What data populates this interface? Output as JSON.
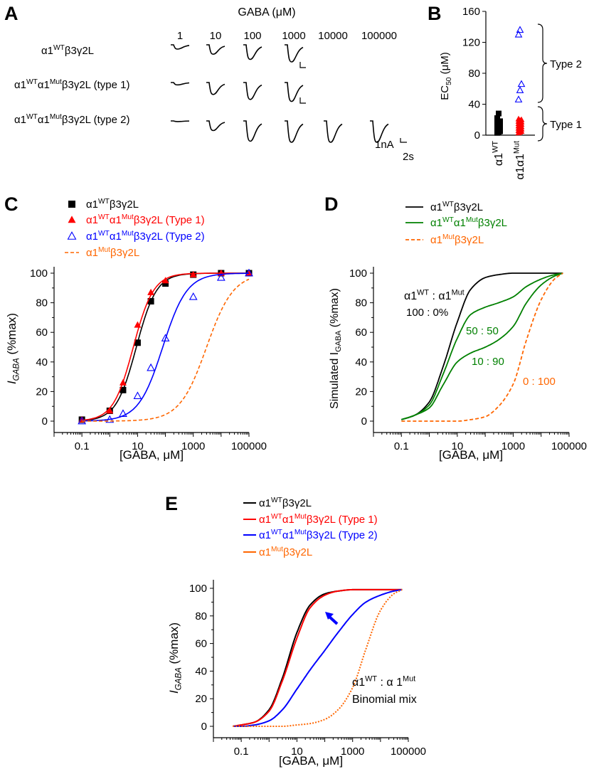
{
  "panels": {
    "A": {
      "letter": "A",
      "concentration_header": "GABA (μM)",
      "concentrations": [
        "1",
        "10",
        "100",
        "1000",
        "10000",
        "100000"
      ],
      "rows": [
        {
          "parts": [
            {
              "t": "α1",
              "s": "n"
            },
            {
              "t": "WT",
              "s": "sup"
            },
            {
              "t": "β3γ2L",
              "s": "n"
            }
          ]
        },
        {
          "parts": [
            {
              "t": "α1",
              "s": "n"
            },
            {
              "t": "WT",
              "s": "sup"
            },
            {
              "t": "α1",
              "s": "n"
            },
            {
              "t": "Mut",
              "s": "sup"
            },
            {
              "t": "β3γ2L (type 1)",
              "s": "n"
            }
          ]
        },
        {
          "parts": [
            {
              "t": "α1",
              "s": "n"
            },
            {
              "t": "WT",
              "s": "sup"
            },
            {
              "t": "α1",
              "s": "n"
            },
            {
              "t": "Mut",
              "s": "sup"
            },
            {
              "t": "β3γ2L (type 2)",
              "s": "n"
            }
          ]
        }
      ],
      "trace_depths": [
        [
          0.25,
          0.55,
          0.85,
          1.0
        ],
        [
          0.12,
          0.6,
          0.85,
          0.95
        ],
        [
          0.03,
          0.45,
          0.95,
          1.0,
          1.0,
          1.0
        ]
      ],
      "scale_current": "1nA",
      "scale_time": "2s"
    },
    "B": {
      "letter": "B",
      "ylabel": {
        "parts": [
          {
            "t": "EC",
            "s": "n"
          },
          {
            "t": "50",
            "s": "sub"
          },
          {
            "t": " (μM)",
            "s": "n"
          }
        ]
      },
      "yticks": [
        "0",
        "40",
        "80",
        "120",
        "160"
      ],
      "categories": [
        {
          "parts": [
            {
              "t": "α1",
              "s": "n"
            },
            {
              "t": "WT",
              "s": "sup"
            }
          ]
        },
        {
          "parts": [
            {
              "t": "α1α1",
              "s": "n"
            },
            {
              "t": "Mut",
              "s": "sup"
            }
          ]
        }
      ],
      "brace_labels": [
        "Type 2",
        "Type 1"
      ]
    },
    "C": {
      "letter": "C",
      "legend": [
        {
          "parts": [
            {
              "t": "α1",
              "s": "n"
            },
            {
              "t": "WT",
              "s": "sup"
            },
            {
              "t": "β3γ2L",
              "s": "n"
            }
          ]
        },
        {
          "parts": [
            {
              "t": "α1",
              "s": "n"
            },
            {
              "t": "WT",
              "s": "sup"
            },
            {
              "t": "α1",
              "s": "n"
            },
            {
              "t": "Mut",
              "s": "sup"
            },
            {
              "t": "β3γ2L (Type 1)",
              "s": "n"
            }
          ]
        },
        {
          "parts": [
            {
              "t": "α1",
              "s": "n"
            },
            {
              "t": "WT",
              "s": "sup"
            },
            {
              "t": "α1",
              "s": "n"
            },
            {
              "t": "Mut",
              "s": "sup"
            },
            {
              "t": "β3γ2L (Type 2)",
              "s": "n"
            }
          ]
        },
        {
          "parts": [
            {
              "t": "α1",
              "s": "n"
            },
            {
              "t": "Mut",
              "s": "sup"
            },
            {
              "t": "β3γ2L",
              "s": "n"
            }
          ]
        }
      ],
      "ylabel": {
        "parts": [
          {
            "t": "I",
            "s": "i"
          },
          {
            "t": "GABA",
            "s": "isub"
          },
          {
            "t": " (%max)",
            "s": "n"
          }
        ]
      },
      "xlabel": "[GABA, μM]",
      "xticks": [
        "0.1",
        "10",
        "1000",
        "100000"
      ],
      "yticks": [
        "0",
        "20",
        "40",
        "60",
        "80",
        "100"
      ]
    },
    "D": {
      "letter": "D",
      "legend": [
        {
          "parts": [
            {
              "t": "α1",
              "s": "n"
            },
            {
              "t": "WT",
              "s": "sup"
            },
            {
              "t": "β3γ2L",
              "s": "n"
            }
          ]
        },
        {
          "parts": [
            {
              "t": "α1",
              "s": "n"
            },
            {
              "t": "WT",
              "s": "sup"
            },
            {
              "t": "α1",
              "s": "n"
            },
            {
              "t": "Mut",
              "s": "sup"
            },
            {
              "t": "β3γ2L",
              "s": "n"
            }
          ]
        },
        {
          "parts": [
            {
              "t": "α1",
              "s": "n"
            },
            {
              "t": "Mut",
              "s": "sup"
            },
            {
              "t": "β3γ2L",
              "s": "n"
            }
          ]
        }
      ],
      "ylabel": {
        "parts": [
          {
            "t": "Simulated I",
            "s": "n"
          },
          {
            "t": "GABA",
            "s": "sub"
          },
          {
            "t": " (%max)",
            "s": "n"
          }
        ]
      },
      "xlabel": "[GABA, μM]",
      "xticks": [
        "0.1",
        "10",
        "1000",
        "100000"
      ],
      "yticks": [
        "0",
        "20",
        "40",
        "60",
        "80",
        "100"
      ],
      "ratio_header": {
        "parts": [
          {
            "t": "α1",
            "s": "n"
          },
          {
            "t": "WT",
            "s": "sup"
          },
          {
            "t": " : α1",
            "s": "n"
          },
          {
            "t": "Mut",
            "s": "sup"
          }
        ]
      },
      "ratio_labels": [
        "100 : 0%",
        "50 : 50",
        "10 : 90",
        "0 : 100"
      ]
    },
    "E": {
      "letter": "E",
      "legend": [
        {
          "parts": [
            {
              "t": "α1",
              "s": "n"
            },
            {
              "t": "WT",
              "s": "sup"
            },
            {
              "t": "β3γ2L",
              "s": "n"
            }
          ]
        },
        {
          "parts": [
            {
              "t": "α1",
              "s": "n"
            },
            {
              "t": "WT",
              "s": "sup"
            },
            {
              "t": "α1",
              "s": "n"
            },
            {
              "t": "Mut",
              "s": "sup"
            },
            {
              "t": "β3γ2L (Type 1)",
              "s": "n"
            }
          ]
        },
        {
          "parts": [
            {
              "t": "α1",
              "s": "n"
            },
            {
              "t": "WT",
              "s": "sup"
            },
            {
              "t": "α1",
              "s": "n"
            },
            {
              "t": "Mut",
              "s": "sup"
            },
            {
              "t": "β3γ2L (Type 2)",
              "s": "n"
            }
          ]
        },
        {
          "parts": [
            {
              "t": "α1",
              "s": "n"
            },
            {
              "t": "Mut",
              "s": "sup"
            },
            {
              "t": "β3γ2L",
              "s": "n"
            }
          ]
        }
      ],
      "ylabel": {
        "parts": [
          {
            "t": "I",
            "s": "i"
          },
          {
            "t": "GABA",
            "s": "isub"
          },
          {
            "t": " (%max)",
            "s": "n"
          }
        ]
      },
      "xlabel": "[GABA, μM]",
      "xticks": [
        "0.1",
        "10",
        "1000",
        "100000"
      ],
      "yticks": [
        "0",
        "20",
        "40",
        "60",
        "80",
        "100"
      ],
      "annotation_line1": {
        "parts": [
          {
            "t": "α1",
            "s": "n"
          },
          {
            "t": "WT",
            "s": "sup"
          },
          {
            "t": " : α 1",
            "s": "n"
          },
          {
            "t": "Mut",
            "s": "sup"
          }
        ]
      },
      "annotation_line2": "Binomial mix"
    }
  },
  "colors": {
    "wt": "#000000",
    "type1": "#ff0000",
    "type2": "#0000ff",
    "mut": "#ff6600",
    "mix": "#008000"
  },
  "chart_data": [
    {
      "id": "B",
      "type": "scatter",
      "ylim": [
        0,
        160
      ],
      "series": [
        {
          "category": 0,
          "marker": "square",
          "color": "#000000",
          "values": [
            3,
            4,
            5,
            6,
            7,
            8,
            9,
            10,
            11,
            12,
            13,
            14,
            15,
            16,
            18,
            22,
            28
          ]
        },
        {
          "category": 1,
          "marker": "triangle-filled",
          "color": "#ff0000",
          "values": [
            3,
            4,
            5,
            6,
            7,
            8,
            9,
            10,
            11,
            12,
            13,
            14,
            15,
            16,
            17,
            18,
            19,
            20,
            21
          ]
        },
        {
          "category": 1,
          "marker": "triangle-open",
          "color": "#0000ff",
          "values": [
            46,
            58,
            66,
            130,
            136
          ]
        }
      ]
    },
    {
      "id": "C",
      "type": "scatter",
      "xscale": "log",
      "xlim": [
        0.01,
        100000
      ],
      "ylim": [
        0,
        100
      ],
      "x": [
        0.1,
        1,
        3,
        10,
        30,
        100,
        1000,
        10000,
        100000
      ],
      "series": [
        {
          "marker": "square",
          "color": "#000000",
          "fit": {
            "ec50": 9,
            "hill": 1.2
          },
          "values": [
            1,
            7,
            21,
            53,
            81,
            93,
            99,
            100,
            100
          ]
        },
        {
          "marker": "triangle-filled",
          "color": "#ff0000",
          "fit": {
            "ec50": 7,
            "hill": 1.2
          },
          "values": [
            1,
            7,
            26,
            65,
            87,
            95,
            99,
            100,
            100
          ]
        },
        {
          "marker": "triangle-open",
          "color": "#0000ff",
          "fit": {
            "ec50": 80,
            "hill": 1.0
          },
          "values": [
            0,
            1,
            5,
            17,
            36,
            56,
            84,
            97,
            100
          ]
        },
        {
          "marker": "none",
          "line": "dashed",
          "color": "#ff6600",
          "fit": {
            "ec50": 3000,
            "hill": 0.9
          },
          "values": []
        }
      ]
    },
    {
      "id": "D",
      "type": "line",
      "xscale": "log",
      "xlim": [
        0.01,
        100000
      ],
      "ylim": [
        0,
        100
      ],
      "x": [
        0.1,
        0.3,
        1,
        3,
        10,
        30,
        100,
        300,
        1000,
        3000,
        10000,
        30000,
        60000
      ],
      "series": [
        {
          "color": "#000000",
          "values": [
            1,
            4,
            13,
            36,
            67,
            89,
            97,
            99,
            100,
            100,
            100,
            100,
            100
          ]
        },
        {
          "color": "#008000",
          "values": [
            1,
            4,
            11,
            31,
            56,
            72,
            77,
            80,
            84,
            91,
            96,
            99,
            100
          ]
        },
        {
          "color": "#008000",
          "values": [
            1,
            4,
            9,
            24,
            40,
            46,
            50,
            55,
            64,
            80,
            92,
            98,
            100
          ]
        },
        {
          "color": "#ff6600",
          "line": "dashed",
          "values": [
            0,
            0,
            0,
            0,
            0,
            1,
            3,
            10,
            25,
            55,
            82,
            96,
            100
          ]
        }
      ]
    },
    {
      "id": "E",
      "type": "line",
      "xscale": "log",
      "xlim": [
        0.01,
        100000
      ],
      "ylim": [
        0,
        100
      ],
      "x": [
        0.05,
        0.1,
        0.3,
        1,
        3,
        10,
        30,
        100,
        300,
        1000,
        3000,
        10000,
        30000,
        60000
      ],
      "series": [
        {
          "color": "#000000",
          "values": [
            0,
            1,
            3,
            12,
            35,
            68,
            88,
            96,
            98,
            99,
            99,
            99,
            99,
            99
          ]
        },
        {
          "color": "#ff0000",
          "values": [
            0,
            1,
            3,
            11,
            33,
            64,
            86,
            95,
            98,
            99,
            99,
            99,
            99,
            99
          ]
        },
        {
          "color": "#0000ff",
          "values": [
            0,
            0,
            1,
            4,
            12,
            27,
            41,
            55,
            68,
            81,
            90,
            95,
            98,
            99
          ]
        },
        {
          "color": "#ff6600",
          "line": "dotted",
          "values": [
            0,
            0,
            0,
            0,
            0,
            1,
            2,
            5,
            12,
            28,
            56,
            84,
            96,
            99
          ]
        }
      ]
    }
  ]
}
